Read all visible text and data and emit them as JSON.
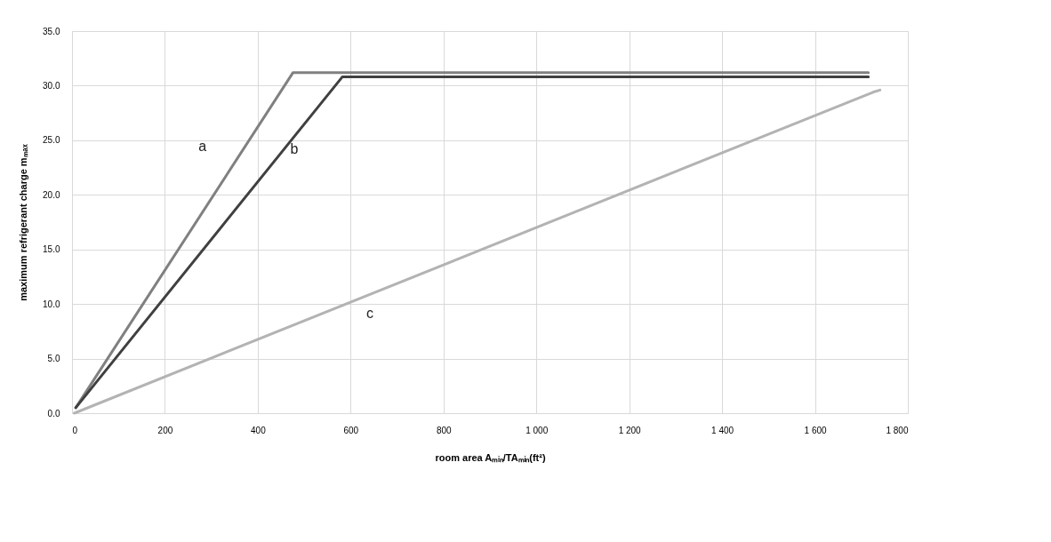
{
  "chart_data": {
    "type": "line",
    "xlabel": "room area Aₘᵢₙ/TAₘᵢₙ(ft²)",
    "ylabel": "maximum refrigerant charge mₘₐₓ",
    "series": [
      {
        "name": "a",
        "color": "#808080",
        "x": [
          8,
          476,
          1715
        ],
        "values": [
          0.5,
          31.2,
          31.2
        ]
      },
      {
        "name": "b",
        "color": "#404040",
        "x": [
          8,
          582,
          1715
        ],
        "values": [
          0.5,
          30.8,
          30.8
        ]
      },
      {
        "name": "c",
        "color": "#b3b3b3",
        "x": [
          5,
          1725,
          1740
        ],
        "values": [
          0.0,
          29.4,
          29.6
        ]
      }
    ],
    "xlim": [
      0,
      1800
    ],
    "xticks": [
      0,
      200,
      400,
      600,
      800,
      {
        "value": 1000,
        "label": "1 000"
      },
      {
        "value": 1200,
        "label": "1 200"
      },
      {
        "value": 1400,
        "label": "1 400"
      },
      {
        "value": 1600,
        "label": "1 600"
      },
      {
        "value": 1800,
        "label": "1 800"
      }
    ],
    "ylim": [
      0,
      35
    ],
    "yticks": [
      {
        "value": 0,
        "label": "0.0"
      },
      {
        "value": 5,
        "label": "5.0"
      },
      {
        "value": 10,
        "label": "10.0"
      },
      {
        "value": 15,
        "label": "15.0"
      },
      {
        "value": 20,
        "label": "20.0"
      },
      {
        "value": 25,
        "label": "25.0"
      },
      {
        "value": 30,
        "label": "30.0"
      },
      {
        "value": 35,
        "label": "35.0"
      }
    ],
    "grid": true,
    "legend": false,
    "marker": "none",
    "line_style": "solid"
  }
}
